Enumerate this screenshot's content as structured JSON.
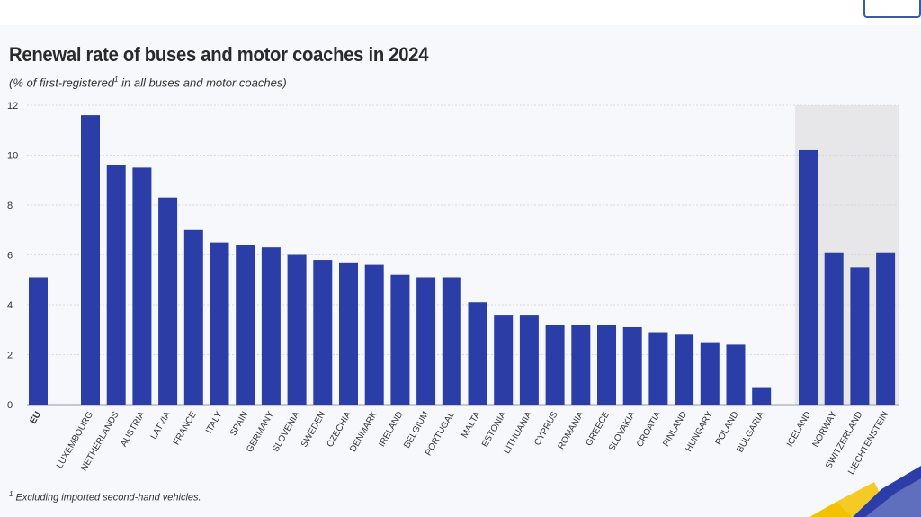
{
  "chart_data": {
    "type": "bar",
    "title": "Renewal rate of buses and motor coaches in 2024",
    "subtitle_pre": "(% of first-registered",
    "subtitle_sup": "1",
    "subtitle_post": " in all buses and motor coaches)",
    "footnote_sup": "1",
    "footnote": " Excluding imported second-hand vehicles.",
    "ylim": [
      0,
      12
    ],
    "yticks": [
      0,
      2,
      4,
      6,
      8,
      10,
      12
    ],
    "bar_color": "#2b3ea8",
    "highlight_color": "#e7e7ea",
    "groups": [
      {
        "name": "eu",
        "categories": [
          "EU"
        ],
        "values": [
          5.1
        ]
      },
      {
        "name": "member-states",
        "categories": [
          "LUXEMBOURG",
          "NETHERLANDS",
          "AUSTRIA",
          "LATVIA",
          "FRANCE",
          "ITALY",
          "SPAIN",
          "GERMANY",
          "SLOVENIA",
          "SWEDEN",
          "CZECHIA",
          "DENMARK",
          "IRELAND",
          "BELGIUM",
          "PORTUGAL",
          "MALTA",
          "ESTONIA",
          "LITHUANIA",
          "CYPRUS",
          "ROMANIA",
          "GREECE",
          "SLOVAKIA",
          "CROATIA",
          "FINLAND",
          "HUNGARY",
          "POLAND",
          "BULGARIA"
        ],
        "values": [
          11.6,
          9.6,
          9.5,
          8.3,
          7.0,
          6.5,
          6.4,
          6.3,
          6.0,
          5.8,
          5.7,
          5.6,
          5.2,
          5.1,
          5.1,
          4.1,
          3.6,
          3.6,
          3.2,
          3.2,
          3.2,
          3.1,
          2.9,
          2.8,
          2.5,
          2.4,
          0.7
        ]
      },
      {
        "name": "efta",
        "categories": [
          "ICELAND",
          "NORWAY",
          "SWITZERLAND",
          "LIECHTENSTEIN"
        ],
        "values": [
          10.2,
          6.1,
          5.5,
          6.1
        ]
      }
    ]
  }
}
